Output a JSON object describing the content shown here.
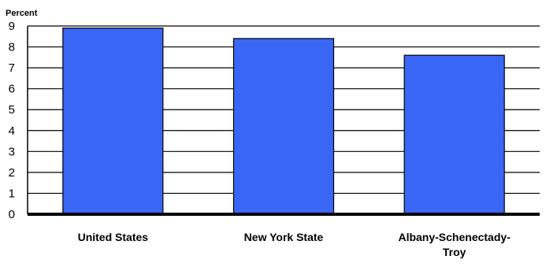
{
  "chart_data": {
    "type": "bar",
    "title": "",
    "xlabel": "",
    "ylabel": "Percent",
    "ylim": [
      0,
      9
    ],
    "yticks": [
      0,
      1,
      2,
      3,
      4,
      5,
      6,
      7,
      8,
      9
    ],
    "grid": true,
    "legend": "none",
    "categories": [
      [
        "United States"
      ],
      [
        "New York State"
      ],
      [
        "Albany-Schenectady-",
        "Troy"
      ]
    ],
    "values": [
      8.9,
      8.4,
      7.6
    ],
    "bar_color": "#3a66f5",
    "bar_edge_color": "#000000"
  }
}
